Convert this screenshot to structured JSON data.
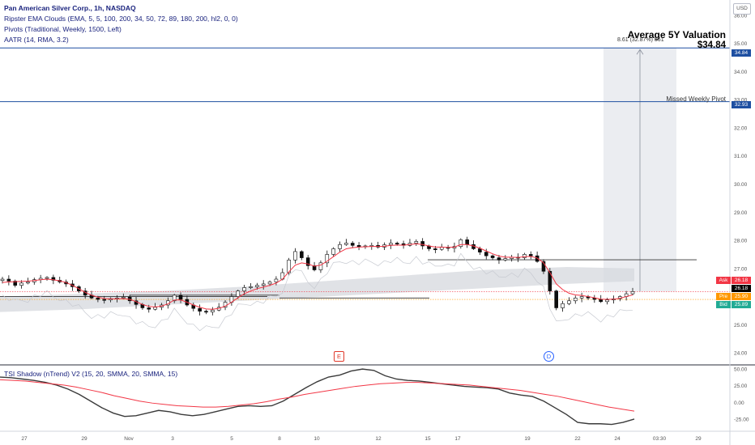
{
  "legend": {
    "symbol": "Pan American Silver Corp., 1h, NASDAQ",
    "ema_clouds": "Ripster EMA Clouds (EMA, 5, 5, 100, 200, 34, 50, 72, 89, 180, 200, hl2, 0, 0)",
    "pivots": "Pivots (Traditional, Weekly, 1500, Left)",
    "aatr": "AATR (14, RMA, 3.2)"
  },
  "currency_button": "USD",
  "annotations": {
    "title": "Average 5Y Valuation",
    "value": "$34.84",
    "measure": "8.61 (32.87%) 861",
    "missed": "Missed Weekly Pivot"
  },
  "events": {
    "earnings": "E",
    "dividend": "D"
  },
  "price_labels": {
    "valuation": "34.84",
    "pivot": "32.93",
    "ask": "26.18",
    "last": "26.18",
    "pre": "25.90",
    "bid": "25.89"
  },
  "price_tags": {
    "ask": "Ask",
    "pre": "Pre",
    "bid": "Bid"
  },
  "colors": {
    "up": "#089981",
    "down": "#000000",
    "ema": "#f23645",
    "blue_line": "#1e4fa1",
    "ask": "#f23645",
    "bid": "#22ab94",
    "pre": "#ff9800",
    "last": "#000000",
    "tsi_red": "#f23645"
  },
  "indicator_legend": "TSI Shadow (nTrend) V2 (15, 20, SMMA, 20, SMMA, 15)",
  "chart_data": [
    {
      "type": "line",
      "subtype": "candlestick",
      "title": "Pan American Silver Corp., 1h, NASDAQ",
      "y_ticks": [
        24.0,
        25.0,
        26.0,
        27.0,
        28.0,
        29.0,
        30.0,
        31.0,
        32.0,
        33.0,
        34.0,
        35.0,
        36.0
      ],
      "ylim": [
        23.6,
        36.4
      ],
      "x_ticks": [
        "27",
        "29",
        "Nov",
        "3",
        "5",
        "8",
        "10",
        "12",
        "15",
        "17",
        "19",
        "22",
        "24",
        "03:30",
        "29"
      ],
      "horizontal_levels": [
        34.84,
        32.93,
        27.31,
        26.18,
        25.9
      ],
      "series": [
        {
          "name": "price",
          "values": [
            26.62,
            26.55,
            26.4,
            26.48,
            26.52,
            26.6,
            26.65,
            26.68,
            26.58,
            26.52,
            26.45,
            26.35,
            26.2,
            26.05,
            25.95,
            25.9,
            25.88,
            25.93,
            25.95,
            25.98,
            25.85,
            25.72,
            25.6,
            25.55,
            25.62,
            25.7,
            25.85,
            26.05,
            25.9,
            25.7,
            25.58,
            25.48,
            25.45,
            25.52,
            25.62,
            25.8,
            26.0,
            26.2,
            26.32,
            26.35,
            26.4,
            26.45,
            26.52,
            26.62,
            26.85,
            27.3,
            27.6,
            27.38,
            27.1,
            26.95,
            27.2,
            27.5,
            27.7,
            27.85,
            27.9,
            27.82,
            27.78,
            27.8,
            27.82,
            27.76,
            27.84,
            27.9,
            27.88,
            27.82,
            27.9,
            27.96,
            27.8,
            27.7,
            27.68,
            27.75,
            27.72,
            27.78,
            28.02,
            27.85,
            27.7,
            27.58,
            27.45,
            27.38,
            27.3,
            27.35,
            27.4,
            27.38,
            27.5,
            27.45,
            27.25,
            26.9,
            26.2,
            25.6,
            25.75,
            25.85,
            25.95,
            26.0,
            25.95,
            25.9,
            25.82,
            25.88,
            25.92,
            26.0,
            26.1,
            26.18
          ]
        },
        {
          "name": "ema",
          "values": [
            26.5,
            26.52,
            26.53,
            26.54,
            26.55,
            26.57,
            26.6,
            26.62,
            26.6,
            26.56,
            26.5,
            26.4,
            26.28,
            26.15,
            26.05,
            25.98,
            25.93,
            25.92,
            25.92,
            25.93,
            25.9,
            25.82,
            25.72,
            25.65,
            25.63,
            25.66,
            25.74,
            25.88,
            25.88,
            25.8,
            25.7,
            25.62,
            25.56,
            25.55,
            25.58,
            25.66,
            25.8,
            25.96,
            26.1,
            26.2,
            26.28,
            26.34,
            26.4,
            26.48,
            26.62,
            26.88,
            27.12,
            27.2,
            27.16,
            27.08,
            27.12,
            27.26,
            27.42,
            27.58,
            27.7,
            27.74,
            27.76,
            27.77,
            27.78,
            27.78,
            27.79,
            27.82,
            27.83,
            27.83,
            27.85,
            27.88,
            27.85,
            27.8,
            27.76,
            27.76,
            27.75,
            27.76,
            27.85,
            27.85,
            27.8,
            27.72,
            27.62,
            27.52,
            27.44,
            27.4,
            27.4,
            27.39,
            27.42,
            27.43,
            27.37,
            27.2,
            26.85,
            26.45,
            26.25,
            26.12,
            26.06,
            26.04,
            26.0,
            25.96,
            25.91,
            25.9,
            25.91,
            25.94,
            26.0,
            26.06
          ]
        }
      ]
    },
    {
      "type": "line",
      "title": "TSI Shadow (nTrend) V2 (15, 20, SMMA, 20, SMMA, 15)",
      "y_ticks": [
        -25.0,
        0.0,
        25.0,
        50.0
      ],
      "ylim": [
        -42,
        55
      ],
      "series": [
        {
          "name": "tsi",
          "values": [
            38,
            37,
            35,
            33,
            30,
            26,
            20,
            12,
            2,
            -8,
            -16,
            -21,
            -20,
            -16,
            -12,
            -14,
            -18,
            -20,
            -18,
            -14,
            -10,
            -6,
            -5,
            -6,
            -5,
            2,
            12,
            22,
            31,
            38,
            41,
            47,
            50,
            48,
            40,
            35,
            33,
            32,
            30,
            28,
            26,
            24,
            23,
            22,
            20,
            14,
            11,
            9,
            2,
            -8,
            -18,
            -30,
            -32,
            -32,
            -33,
            -30,
            -25
          ]
        },
        {
          "name": "signal",
          "values": [
            34,
            33,
            32,
            30,
            28,
            26,
            23,
            19,
            15,
            10,
            6,
            2,
            -1,
            -3,
            -5,
            -6,
            -7,
            -7,
            -6,
            -4,
            -2,
            1,
            5,
            8,
            12,
            15,
            18,
            21,
            24,
            26,
            28,
            29,
            30,
            30,
            29,
            28,
            27,
            26,
            24,
            22,
            20,
            18,
            15,
            12,
            9,
            5,
            1,
            -3,
            -7,
            -10,
            -13
          ]
        }
      ]
    }
  ]
}
